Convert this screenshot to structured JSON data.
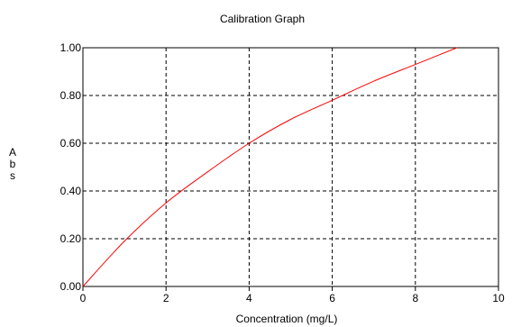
{
  "chart_data": {
    "type": "line",
    "title": "Calibration Graph",
    "xlabel": "Concentration (mg/L)",
    "ylabel": "Abs",
    "xlim": [
      0,
      10
    ],
    "ylim": [
      0,
      1.0
    ],
    "x_ticks": [
      "0",
      "2",
      "4",
      "6",
      "8",
      "10"
    ],
    "y_ticks": [
      "0.00",
      "0.20",
      "0.40",
      "0.60",
      "0.80",
      "1.00"
    ],
    "grid": true,
    "grid_style": "dashed",
    "series": [
      {
        "color": "#ff0000",
        "x": [
          0,
          1,
          2,
          3,
          4,
          5,
          6,
          7,
          8,
          9
        ],
        "y": [
          0.0,
          0.19,
          0.35,
          0.48,
          0.6,
          0.7,
          0.78,
          0.86,
          0.93,
          1.0
        ]
      }
    ]
  }
}
